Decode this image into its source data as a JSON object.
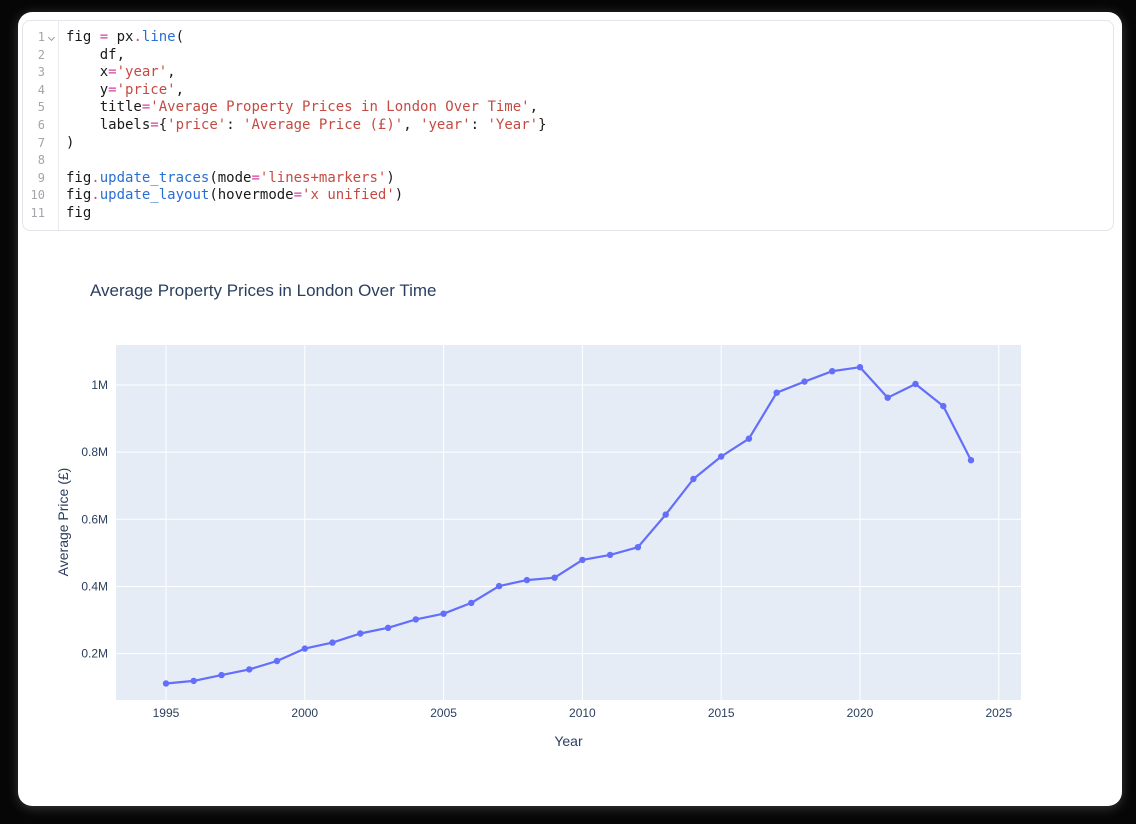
{
  "window": {
    "background": "#060606",
    "panel_background": "#ffffff"
  },
  "editor": {
    "fold_icon": "chevron-down-icon",
    "colors": {
      "default": "#1a1a1a",
      "operator": "#d6409f",
      "function": "#2a6fd0",
      "string": "#c54a42",
      "line_number": "#a4a4aa"
    },
    "lines": [
      {
        "num": "1",
        "fold": true,
        "tokens": [
          {
            "c": "d",
            "t": "fig "
          },
          {
            "c": "o",
            "t": "="
          },
          {
            "c": "d",
            "t": " px"
          },
          {
            "c": "o",
            "t": "."
          },
          {
            "c": "f",
            "t": "line"
          },
          {
            "c": "d",
            "t": "("
          }
        ]
      },
      {
        "num": "2",
        "tokens": [
          {
            "c": "d",
            "t": "    df,"
          }
        ]
      },
      {
        "num": "3",
        "tokens": [
          {
            "c": "d",
            "t": "    x"
          },
          {
            "c": "o",
            "t": "="
          },
          {
            "c": "s",
            "t": "'year'"
          },
          {
            "c": "d",
            "t": ","
          }
        ]
      },
      {
        "num": "4",
        "tokens": [
          {
            "c": "d",
            "t": "    y"
          },
          {
            "c": "o",
            "t": "="
          },
          {
            "c": "s",
            "t": "'price'"
          },
          {
            "c": "d",
            "t": ","
          }
        ]
      },
      {
        "num": "5",
        "tokens": [
          {
            "c": "d",
            "t": "    title"
          },
          {
            "c": "o",
            "t": "="
          },
          {
            "c": "s",
            "t": "'Average Property Prices in London Over Time'"
          },
          {
            "c": "d",
            "t": ","
          }
        ]
      },
      {
        "num": "6",
        "tokens": [
          {
            "c": "d",
            "t": "    labels"
          },
          {
            "c": "o",
            "t": "="
          },
          {
            "c": "d",
            "t": "{"
          },
          {
            "c": "s",
            "t": "'price'"
          },
          {
            "c": "d",
            "t": ": "
          },
          {
            "c": "s",
            "t": "'Average Price (£)'"
          },
          {
            "c": "d",
            "t": ", "
          },
          {
            "c": "s",
            "t": "'year'"
          },
          {
            "c": "d",
            "t": ": "
          },
          {
            "c": "s",
            "t": "'Year'"
          },
          {
            "c": "d",
            "t": "}"
          }
        ]
      },
      {
        "num": "7",
        "tokens": [
          {
            "c": "d",
            "t": ")"
          }
        ]
      },
      {
        "num": "8",
        "tokens": []
      },
      {
        "num": "9",
        "tokens": [
          {
            "c": "d",
            "t": "fig"
          },
          {
            "c": "o",
            "t": "."
          },
          {
            "c": "f",
            "t": "update_traces"
          },
          {
            "c": "d",
            "t": "(mode"
          },
          {
            "c": "o",
            "t": "="
          },
          {
            "c": "s",
            "t": "'lines+markers'"
          },
          {
            "c": "d",
            "t": ")"
          }
        ]
      },
      {
        "num": "10",
        "tokens": [
          {
            "c": "d",
            "t": "fig"
          },
          {
            "c": "o",
            "t": "."
          },
          {
            "c": "f",
            "t": "update_layout"
          },
          {
            "c": "d",
            "t": "(hovermode"
          },
          {
            "c": "o",
            "t": "="
          },
          {
            "c": "s",
            "t": "'x unified'"
          },
          {
            "c": "d",
            "t": ")"
          }
        ]
      },
      {
        "num": "11",
        "tokens": [
          {
            "c": "d",
            "t": "fig"
          }
        ]
      }
    ]
  },
  "chart_data": {
    "type": "line",
    "mode": "lines+markers",
    "title": "Average Property Prices in London Over Time",
    "xlabel": "Year",
    "ylabel": "Average Price (£)",
    "legend": false,
    "grid": true,
    "x": [
      1995,
      1996,
      1997,
      1998,
      1999,
      2000,
      2001,
      2002,
      2003,
      2004,
      2005,
      2006,
      2007,
      2008,
      2009,
      2010,
      2011,
      2012,
      2013,
      2014,
      2015,
      2016,
      2017,
      2018,
      2019,
      2020,
      2021,
      2022,
      2023,
      2024
    ],
    "values": [
      111000,
      119000,
      136000,
      153000,
      178000,
      215000,
      233000,
      260000,
      277000,
      302000,
      319000,
      351000,
      401000,
      419000,
      426000,
      479000,
      494000,
      517000,
      614000,
      720000,
      787000,
      840000,
      977000,
      1010000,
      1041000,
      1053000,
      962000,
      1003000,
      937000,
      776000
    ],
    "x_range": [
      1993.2,
      2025.8
    ],
    "y_range": [
      62000,
      1119000
    ],
    "x_ticks": [
      {
        "v": 1995,
        "label": "1995"
      },
      {
        "v": 2000,
        "label": "2000"
      },
      {
        "v": 2005,
        "label": "2005"
      },
      {
        "v": 2010,
        "label": "2010"
      },
      {
        "v": 2015,
        "label": "2015"
      },
      {
        "v": 2020,
        "label": "2020"
      },
      {
        "v": 2025,
        "label": "2025"
      }
    ],
    "y_ticks": [
      {
        "v": 200000,
        "label": "0.2M"
      },
      {
        "v": 400000,
        "label": "0.4M"
      },
      {
        "v": 600000,
        "label": "0.6M"
      },
      {
        "v": 800000,
        "label": "0.8M"
      },
      {
        "v": 1000000,
        "label": "1M"
      }
    ],
    "line_color": "#636efa",
    "plot_bg": "#e5ecf6",
    "grid_color": "#ffffff",
    "text_color": "#2a3f5f"
  }
}
